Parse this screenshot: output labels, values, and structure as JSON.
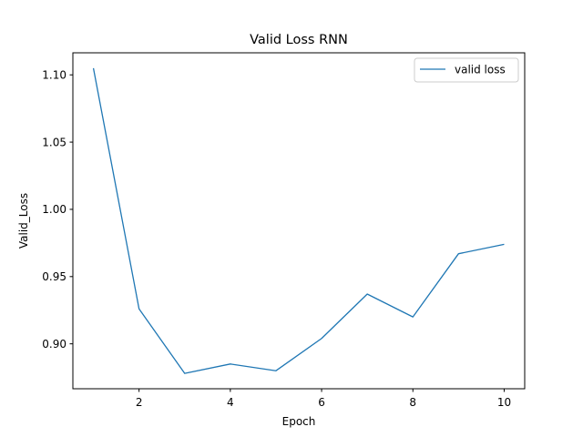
{
  "chart_data": {
    "type": "line",
    "title": "Valid Loss RNN",
    "xlabel": "Epoch",
    "ylabel": "Valid_Loss",
    "x": [
      1,
      2,
      3,
      4,
      5,
      6,
      7,
      8,
      9,
      10
    ],
    "series": [
      {
        "name": "valid loss",
        "color": "#1f77b4",
        "values": [
          1.105,
          0.926,
          0.878,
          0.885,
          0.88,
          0.904,
          0.937,
          0.92,
          0.967,
          0.974
        ]
      }
    ],
    "xlim": [
      0.55,
      10.45
    ],
    "ylim": [
      0.8666,
      1.1164
    ],
    "xticks": [
      2,
      4,
      6,
      8,
      10
    ],
    "xtick_labels": [
      "2",
      "4",
      "6",
      "8",
      "10"
    ],
    "yticks": [
      0.9,
      0.95,
      1.0,
      1.05,
      1.1
    ],
    "ytick_labels": [
      "0.90",
      "0.95",
      "1.00",
      "1.05",
      "1.10"
    ],
    "grid": false,
    "legend_position": "top-right"
  }
}
